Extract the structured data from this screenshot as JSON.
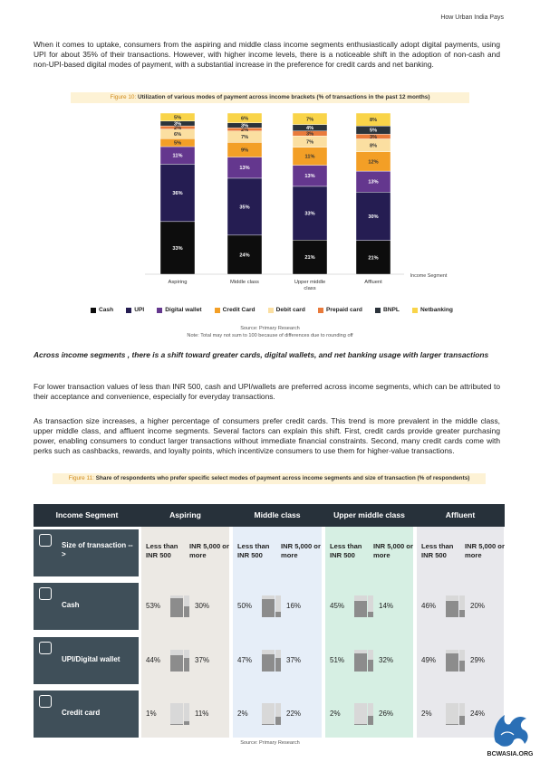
{
  "header": {
    "title": "How Urban India Pays"
  },
  "intro_paragraph": "When it comes to uptake, consumers from the aspiring and middle class income segments enthusiastically adopt digital payments, using UPI for about 35% of their transactions. However, with higher income levels, there is a noticeable shift in the adoption of non-cash and non-UPI-based digital modes of payment, with a substantial increase in the preference for credit cards and net banking.",
  "figure10": {
    "label": "Figure 10:",
    "title": "Utilization of various modes of payment across income brackets (% of transactions in the past 12 months)",
    "source": "Source: Primary Research",
    "note": "Note: Total may not sum to 100 because of differences due to rounding off"
  },
  "chart_data": {
    "type": "bar",
    "stacked": true,
    "categories": [
      "Aspiring",
      "Middle class",
      "Upper middle class",
      "Affluent"
    ],
    "xlabel": "Income Segment",
    "series": [
      {
        "name": "Cash",
        "values": [
          33,
          24,
          21,
          21
        ],
        "color": "#0d0d0d"
      },
      {
        "name": "UPI",
        "values": [
          36,
          35,
          33,
          30
        ],
        "color": "#251d52"
      },
      {
        "name": "Digital wallet",
        "values": [
          11,
          13,
          13,
          13
        ],
        "color": "#64378e"
      },
      {
        "name": "Credit Card",
        "values": [
          5,
          9,
          11,
          12
        ],
        "color": "#f39f26"
      },
      {
        "name": "Debit card",
        "values": [
          6,
          7,
          7,
          8
        ],
        "color": "#fbdfa1"
      },
      {
        "name": "Prepaid card",
        "values": [
          2,
          2,
          3,
          3
        ],
        "color": "#e97a3b"
      },
      {
        "name": "BNPL",
        "values": [
          3,
          3,
          4,
          5
        ],
        "color": "#2b333b"
      },
      {
        "name": "Netbanking",
        "values": [
          5,
          6,
          7,
          8
        ],
        "color": "#f9d449"
      }
    ],
    "category_labels": [
      "Aspiring",
      "Middle class",
      "Upper middle\nclass",
      "Affluent"
    ],
    "data_label_format": "{v}%"
  },
  "subheading": "Across income segments , there is a shift toward greater cards, digital wallets, and net banking usage with larger transactions",
  "para2": "For lower transaction values of less than INR 500, cash and UPI/wallets are preferred across income segments, which can be attributed to their acceptance and convenience, especially for everyday transactions.",
  "para3": "As transaction size increases, a higher percentage of consumers prefer credit cards. This trend is more prevalent in the middle class, upper middle class, and affluent income segments. Several factors can explain this shift. First, credit cards provide greater purchasing power, enabling consumers to conduct larger transactions without immediate financial constraints. Second, many credit cards come with perks such as cashbacks, rewards, and loyalty points, which incentivize consumers to use them for higher-value transactions.",
  "figure11": {
    "label": "Figure 11:",
    "title": "Share of respondents who prefer specific select modes of payment across income segments and size of transaction (% of respondents)",
    "source": "Source: Primary Research"
  },
  "table": {
    "headers": [
      "Income Segment",
      "Aspiring",
      "Middle class",
      "Upper middle class",
      "Affluent"
    ],
    "size_row_label": "Size of transaction -->",
    "size_labels": [
      "Less than INR 500",
      "INR 5,000 or more"
    ],
    "rows": [
      {
        "label": "Cash",
        "icon": "cash-hand-icon",
        "values": [
          [
            53,
            30
          ],
          [
            50,
            16
          ],
          [
            45,
            14
          ],
          [
            46,
            20
          ]
        ]
      },
      {
        "label": "UPI/Digital wallet",
        "icon": "phone-payment-icon",
        "values": [
          [
            44,
            37
          ],
          [
            47,
            37
          ],
          [
            51,
            32
          ],
          [
            49,
            29
          ]
        ]
      },
      {
        "label": "Credit card",
        "icon": "credit-card-icon",
        "values": [
          [
            1,
            11
          ],
          [
            2,
            22
          ],
          [
            2,
            26
          ],
          [
            2,
            24
          ]
        ]
      }
    ],
    "column_colors": [
      "#ece9e4",
      "#e6eef8",
      "#d6efe3",
      "#e8e8ec"
    ]
  },
  "logo": {
    "text": "BCWASIA.ORG"
  }
}
